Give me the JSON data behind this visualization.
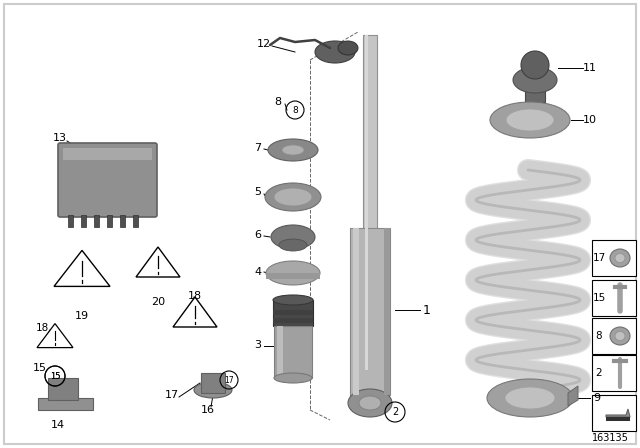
{
  "bg_color": "#ffffff",
  "diagram_id": "163135",
  "colors": {
    "dark_gray": "#6a6a6a",
    "mid_gray": "#8c8c8c",
    "light_gray": "#b8b8b8",
    "silver": "#c8c8c8",
    "very_light": "#e0e0e0",
    "black": "#000000",
    "white": "#ffffff",
    "spring_white": "#e8e8e8",
    "spring_outline": "#aaaaaa"
  }
}
